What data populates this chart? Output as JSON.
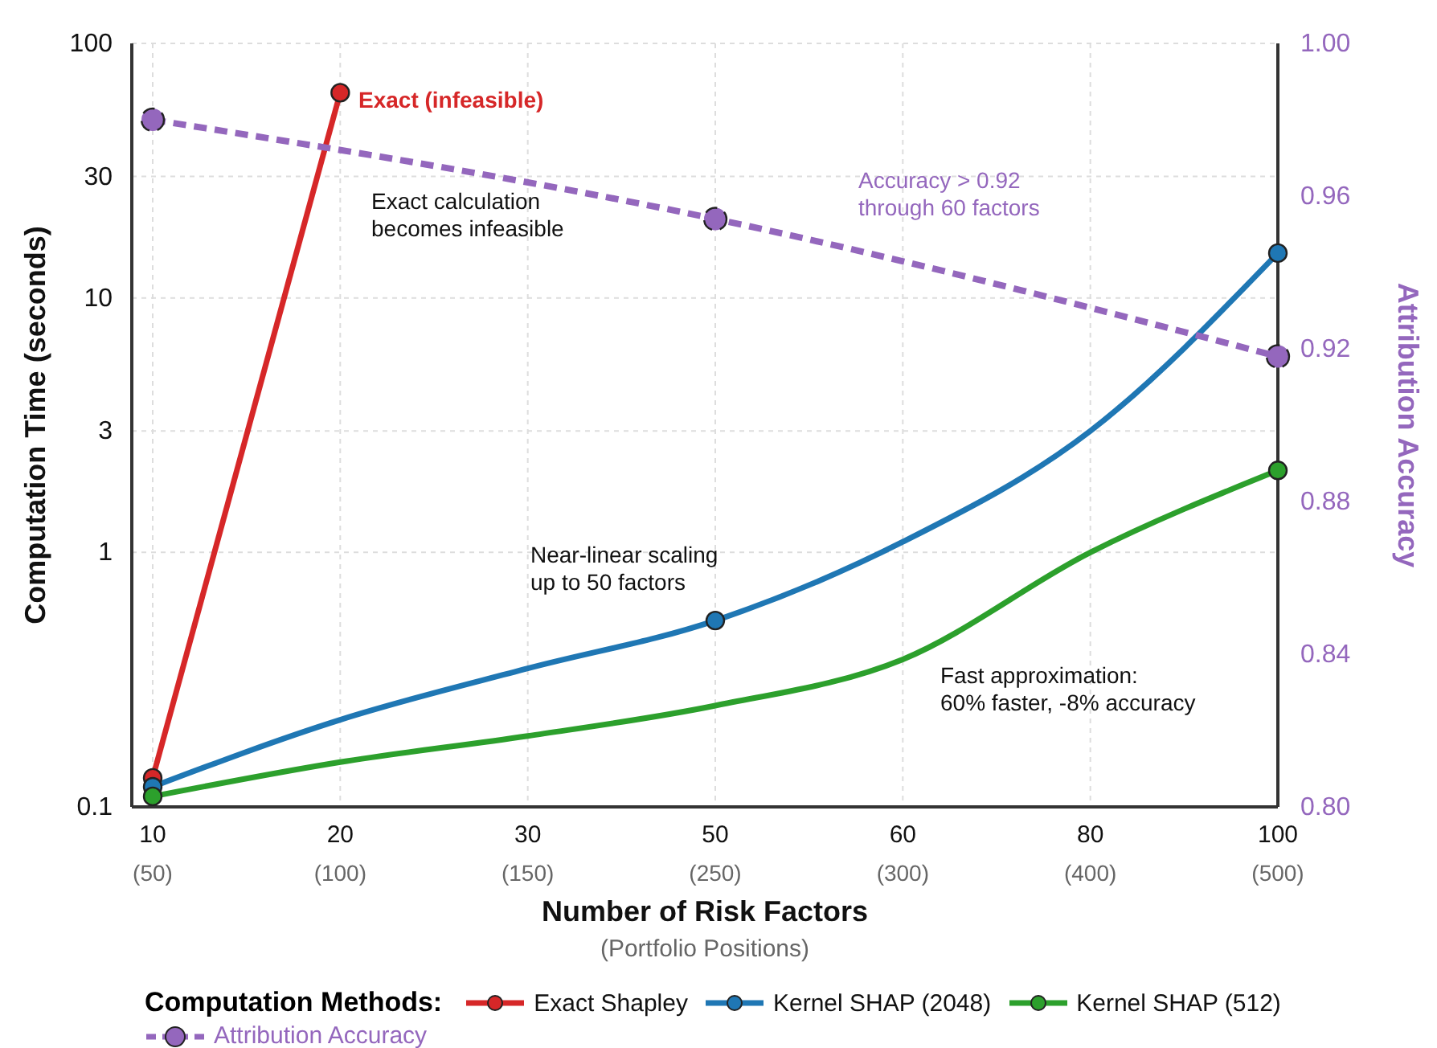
{
  "chart_data": {
    "type": "line",
    "xlabel": "Number of Risk Factors\n(Portfolio Positions)",
    "ylabel": "Computation Time (seconds)",
    "y2label": "Attribution Accuracy",
    "legend_title": "Computation Methods:",
    "legend": "bottom",
    "grid": true,
    "log": "y",
    "categories": [
      "10\n(50)",
      "20\n(100)",
      "30\n(150)",
      "50\n(250)",
      "60\n(300)",
      "80\n(400)",
      "100\n(500)"
    ],
    "ylim": [
      0.1,
      100
    ],
    "yticks": [
      0.1,
      1,
      3,
      10,
      30,
      100
    ],
    "y2lim": [
      0.8,
      1.0
    ],
    "y2ticks": [
      {
        "value": 0.8,
        "label": "0.80"
      },
      0.84,
      0.88,
      0.92,
      0.96,
      {
        "value": 1.0,
        "label": "1.00"
      }
    ],
    "series": [
      {
        "name": "Exact Shapley",
        "color": "#d62728",
        "values": [
          0.13,
          64,
          null,
          null,
          null,
          null,
          null
        ]
      },
      {
        "name": "Kernel SHAP (2048)",
        "color": "#1f77b4",
        "values": [
          0.12,
          0.22,
          0.35,
          0.54,
          1.1,
          3,
          15
        ]
      },
      {
        "name": "Kernel SHAP (512)",
        "color": "#2ca02c",
        "values": [
          0.11,
          0.15,
          0.19,
          0.25,
          0.38,
          1,
          2.1
        ]
      },
      {
        "type": "scatter",
        "color": "#d62728",
        "values": [
          0.13,
          64,
          null,
          null,
          null,
          null,
          null
        ]
      },
      {
        "type": "scatter",
        "color": "#1f77b4",
        "values": [
          0.12,
          null,
          null,
          0.54,
          null,
          null,
          15
        ]
      },
      {
        "type": "scatter",
        "color": "#2ca02c",
        "values": [
          0.11,
          null,
          null,
          null,
          null,
          null,
          2.1
        ]
      },
      {
        "name": "Attribution Accuracy",
        "axis": "y2",
        "color": "#9467bd",
        "marker": "circle",
        "line_style": "dashed",
        "values": [
          0.98,
          null,
          null,
          0.954,
          null,
          null,
          0.918
        ]
      }
    ],
    "annotations": [
      "Exact (infeasible)",
      "Exact calculation\nbecomes infeasible",
      "Near-linear scaling\nup to 50 factors",
      "Fast approximation:\n60% faster, -8% accuracy",
      "Accuracy > 0.92\nthrough 60 factors"
    ]
  }
}
